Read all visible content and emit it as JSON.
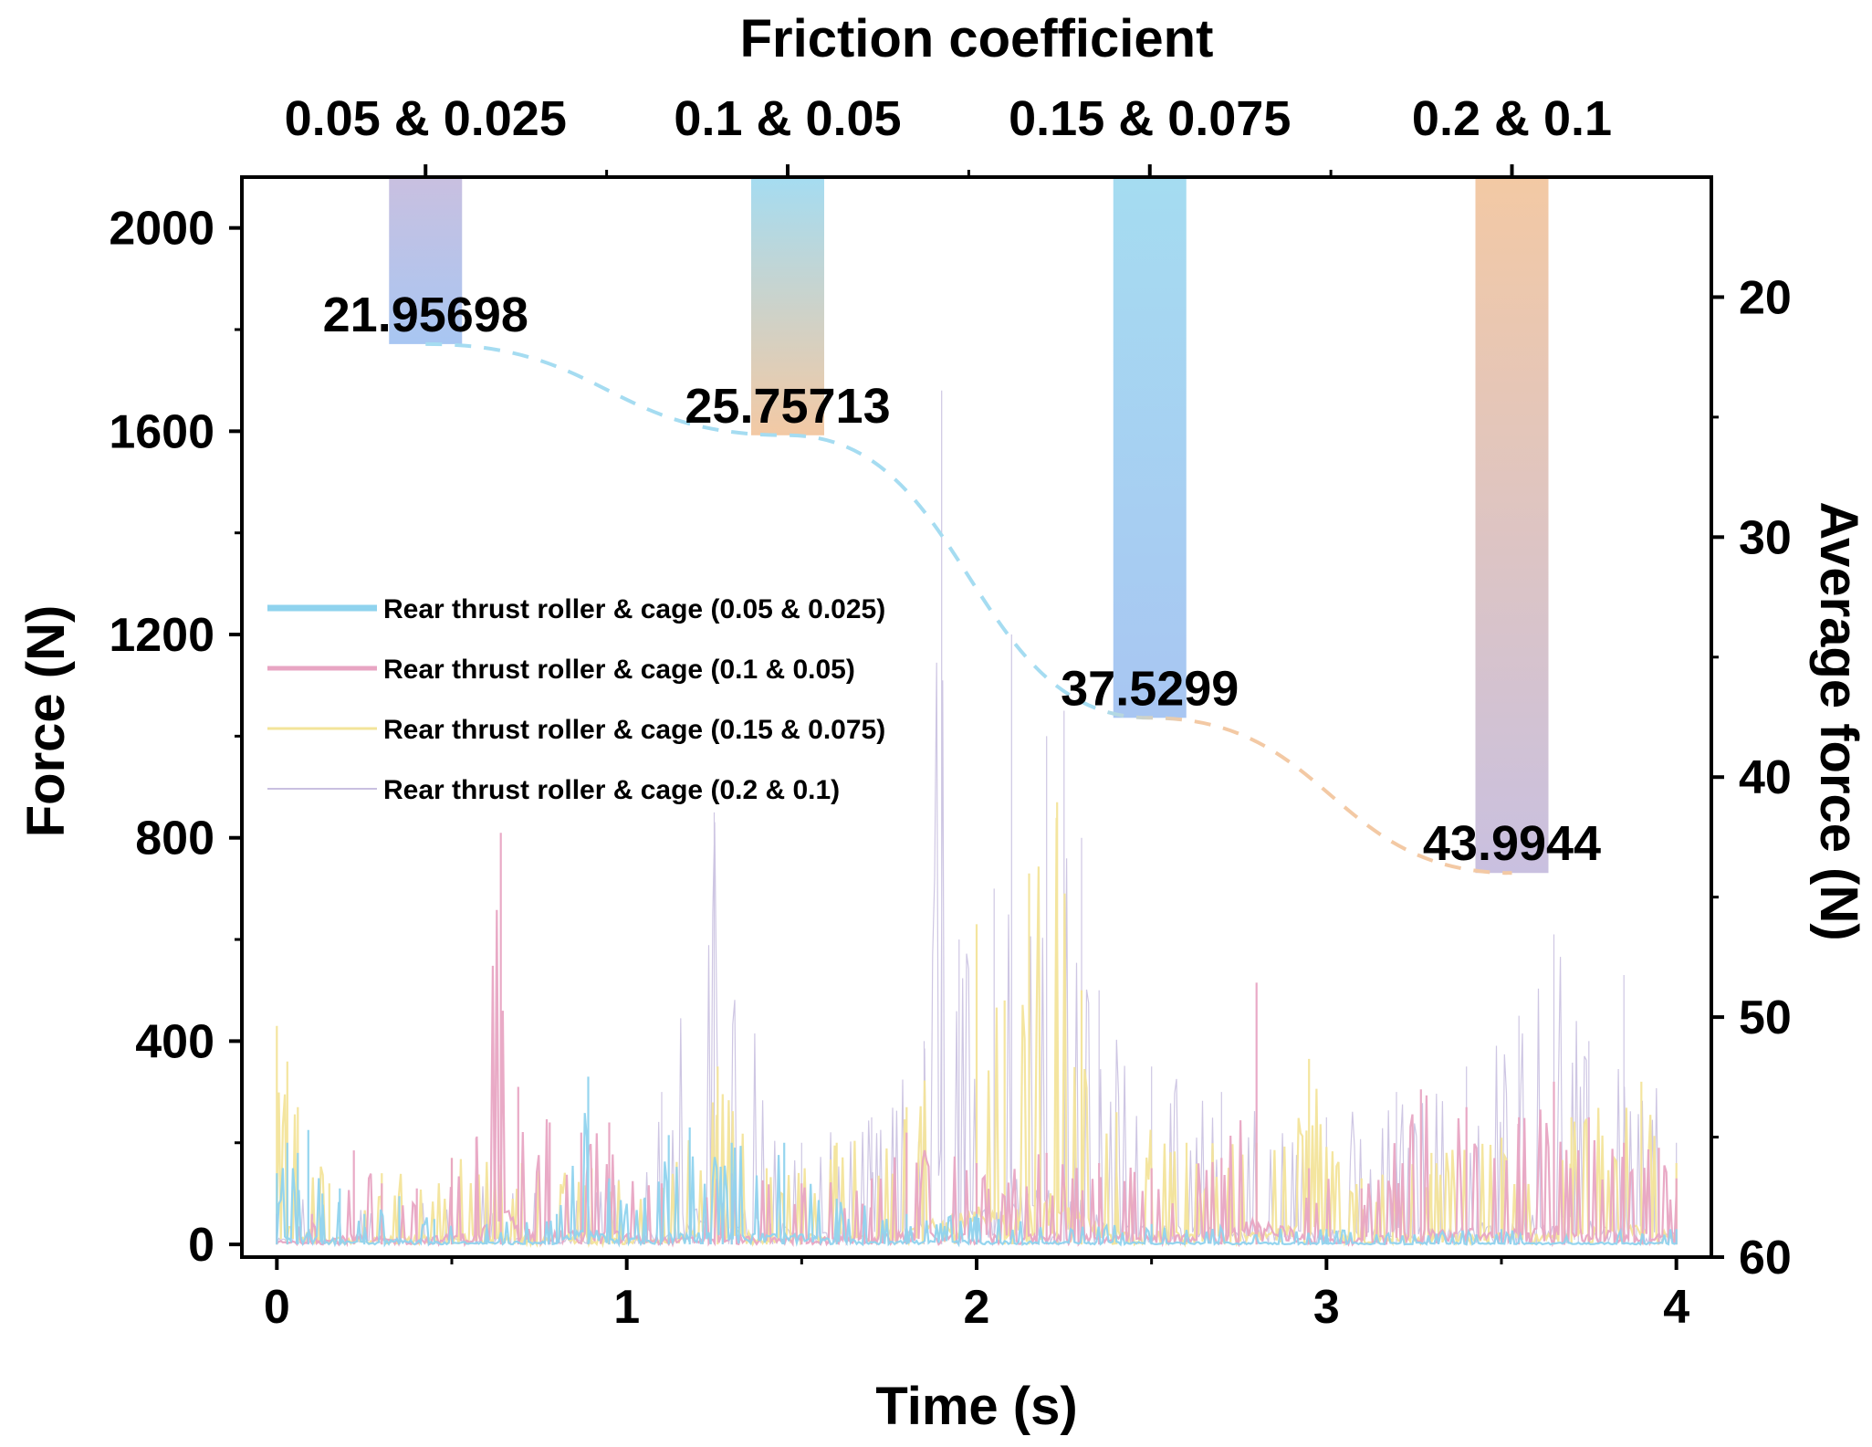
{
  "chart_data": {
    "type": "line",
    "title": "",
    "xlabel": "Time (s)",
    "ylabel": "Force (N)",
    "xlim": [
      -0.1,
      4.1
    ],
    "ylim": [
      -25,
      2100
    ],
    "xticks": [
      0,
      1,
      2,
      3,
      4
    ],
    "yticks": [
      0,
      400,
      800,
      1200,
      1600,
      2000
    ],
    "grid": false,
    "legend_position": "center-left",
    "series": [
      {
        "name": "Rear thrust roller & cage (0.05 & 0.025)",
        "color": "#8fd3ee",
        "peaks": [
          [
            0.0,
            140
          ],
          [
            0.03,
            200
          ],
          [
            0.06,
            180
          ],
          [
            0.09,
            225
          ],
          [
            0.13,
            100
          ],
          [
            0.18,
            110
          ],
          [
            0.25,
            60
          ],
          [
            0.35,
            95
          ],
          [
            0.45,
            50
          ],
          [
            0.6,
            40
          ],
          [
            0.8,
            60
          ],
          [
            0.89,
            330
          ],
          [
            0.95,
            130
          ],
          [
            1.05,
            90
          ],
          [
            1.12,
            215
          ],
          [
            1.18,
            230
          ],
          [
            1.3,
            200
          ],
          [
            1.45,
            200
          ],
          [
            1.6,
            90
          ],
          [
            1.8,
            60
          ],
          [
            2.0,
            60
          ],
          [
            2.5,
            40
          ],
          [
            3.0,
            30
          ],
          [
            3.5,
            30
          ],
          [
            4.0,
            30
          ]
        ]
      },
      {
        "name": "Rear thrust roller & cage (0.1 & 0.05)",
        "color": "#e8a5c3",
        "peaks": [
          [
            0.0,
            60
          ],
          [
            0.1,
            60
          ],
          [
            0.22,
            185
          ],
          [
            0.3,
            120
          ],
          [
            0.4,
            110
          ],
          [
            0.5,
            170
          ],
          [
            0.57,
            210
          ],
          [
            0.64,
            810
          ],
          [
            0.69,
            310
          ],
          [
            0.78,
            240
          ],
          [
            0.87,
            220
          ],
          [
            0.95,
            240
          ],
          [
            1.1,
            120
          ],
          [
            1.3,
            140
          ],
          [
            1.5,
            120
          ],
          [
            1.7,
            130
          ],
          [
            1.8,
            220
          ],
          [
            2.0,
            160
          ],
          [
            2.2,
            180
          ],
          [
            2.35,
            160
          ],
          [
            2.5,
            150
          ],
          [
            2.7,
            170
          ],
          [
            2.8,
            515
          ],
          [
            2.95,
            150
          ],
          [
            3.1,
            110
          ],
          [
            3.27,
            305
          ],
          [
            3.4,
            270
          ],
          [
            3.55,
            250
          ],
          [
            3.65,
            320
          ],
          [
            3.75,
            250
          ],
          [
            3.85,
            200
          ],
          [
            3.95,
            190
          ],
          [
            4.0,
            130
          ]
        ]
      },
      {
        "name": "Rear thrust roller & cage (0.15 & 0.075)",
        "color": "#f3e49a",
        "peaks": [
          [
            0.0,
            430
          ],
          [
            0.03,
            360
          ],
          [
            0.06,
            270
          ],
          [
            0.15,
            120
          ],
          [
            0.3,
            140
          ],
          [
            0.5,
            170
          ],
          [
            0.7,
            160
          ],
          [
            0.9,
            150
          ],
          [
            1.1,
            110
          ],
          [
            1.26,
            350
          ],
          [
            1.4,
            150
          ],
          [
            1.6,
            200
          ],
          [
            1.8,
            270
          ],
          [
            2.0,
            630
          ],
          [
            2.08,
            480
          ],
          [
            2.15,
            730
          ],
          [
            2.23,
            870
          ],
          [
            2.3,
            500
          ],
          [
            2.4,
            260
          ],
          [
            2.6,
            200
          ],
          [
            2.8,
            200
          ],
          [
            2.95,
            365
          ],
          [
            3.1,
            130
          ],
          [
            3.3,
            180
          ],
          [
            3.5,
            210
          ],
          [
            3.7,
            250
          ],
          [
            3.9,
            320
          ],
          [
            4.0,
            160
          ]
        ]
      },
      {
        "name": "Rear thrust roller & cage (0.2 & 0.1)",
        "color": "#c9c0e0",
        "peaks": [
          [
            0.0,
            100
          ],
          [
            0.3,
            80
          ],
          [
            0.6,
            120
          ],
          [
            0.9,
            100
          ],
          [
            1.1,
            300
          ],
          [
            1.25,
            850
          ],
          [
            1.5,
            200
          ],
          [
            1.7,
            250
          ],
          [
            1.85,
            400
          ],
          [
            1.9,
            1680
          ],
          [
            1.95,
            600
          ],
          [
            2.05,
            700
          ],
          [
            2.1,
            1200
          ],
          [
            2.2,
            1000
          ],
          [
            2.25,
            1050
          ],
          [
            2.3,
            800
          ],
          [
            2.35,
            500
          ],
          [
            2.5,
            350
          ],
          [
            2.7,
            300
          ],
          [
            3.0,
            250
          ],
          [
            3.2,
            300
          ],
          [
            3.4,
            350
          ],
          [
            3.55,
            450
          ],
          [
            3.65,
            610
          ],
          [
            3.75,
            400
          ],
          [
            3.85,
            530
          ],
          [
            4.0,
            200
          ]
        ]
      }
    ],
    "top_axis": {
      "title": "Friction coefficient",
      "categories": [
        "0.05 & 0.025",
        "0.1 & 0.05",
        "0.15 & 0.075",
        "0.2 & 0.1"
      ]
    },
    "right_axis": {
      "label": "Average force (N)",
      "range": [
        15,
        60
      ],
      "inverted": true,
      "ticks": [
        20,
        30,
        40,
        50,
        60
      ]
    },
    "average_force": {
      "type": "bar",
      "categories": [
        "0.05 & 0.025",
        "0.1 & 0.05",
        "0.15 & 0.075",
        "0.2 & 0.1"
      ],
      "values": [
        21.95698,
        25.75713,
        37.5299,
        43.9944
      ],
      "labels": [
        "21.95698",
        "25.75713",
        "37.5299",
        "43.9944"
      ],
      "bar_gradients": [
        [
          "#c9c0e0",
          "#a8c6f2"
        ],
        [
          "#a5dcf1",
          "#f3c9a4"
        ],
        [
          "#a5dcf1",
          "#a8c6f2"
        ],
        [
          "#f3c9a4",
          "#c9c0e0"
        ]
      ],
      "trend_colors": [
        "#a5dcf1",
        "#f3c9a4"
      ]
    }
  }
}
